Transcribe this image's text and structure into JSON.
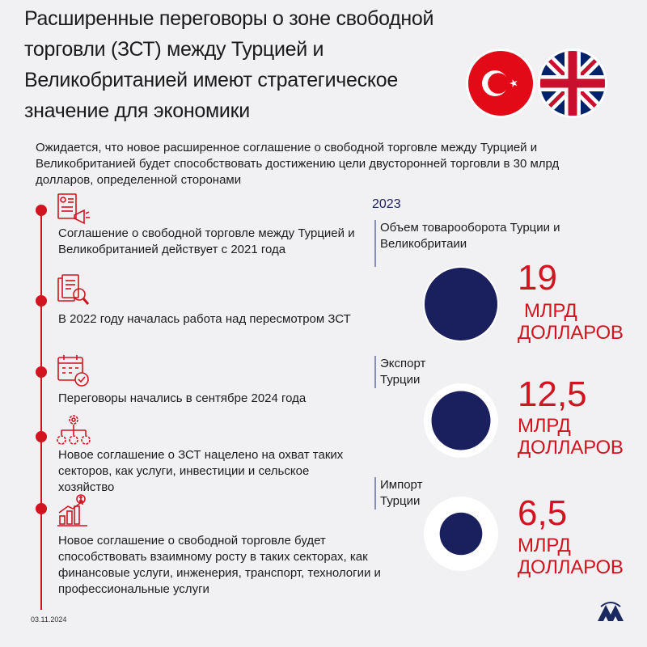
{
  "title": "Расширенные переговоры о зоне свободной торговли (ЗСТ) между Турцией и Великобританией имеют стратегическое значение для экономики",
  "intro": "Ожидается, что новое расширенное соглашение о свободной торговле между Турцией и Великобританией будет способствовать достижению цели двусторонней торговли в 30 млрд долларов, определенной сторонами",
  "timeline": [
    {
      "icon": "document-megaphone-icon",
      "text": "Соглашение о свободной торговле между Турцией и Великобританией действует с 2021 года"
    },
    {
      "icon": "document-search-icon",
      "text": "В 2022 году началась работа над пересмотром ЗСТ"
    },
    {
      "icon": "calendar-check-icon",
      "text": "Переговоры начались в сентябре 2024 года"
    },
    {
      "icon": "gear-network-icon",
      "text": "Новое соглашение о ЗСТ нацелено на охват таких секторов, как услуги, инвестиции и сельское хозяйство"
    },
    {
      "icon": "growth-chart-icon",
      "text": "Новое соглашение о свободной торговле будет способствовать взаимному росту в таких секторах, как финансовые услуги, инженерия, транспорт, технологии и профессиональные услуги"
    }
  ],
  "chart_data": {
    "type": "bubble",
    "title": "2023",
    "unit": "МЛРД ДОЛЛАРОВ",
    "items": [
      {
        "label": "Объем товарооборота Турции и Великобритаии",
        "value": 19,
        "display": "19",
        "unit_line1": "МЛРД",
        "unit_line2": "ДОЛЛАРОВ"
      },
      {
        "label": "Экспорт Турции",
        "value": 12.5,
        "display": "12,5",
        "unit_line1": "МЛРД",
        "unit_line2": "ДОЛЛАРОВ"
      },
      {
        "label": "Импорт Турции",
        "value": 6.5,
        "display": "6,5",
        "unit_line1": "МЛРД",
        "unit_line2": "ДОЛЛАРОВ"
      }
    ]
  },
  "flags": [
    "turkey-flag",
    "uk-flag"
  ],
  "colors": {
    "accent": "#d1141f",
    "navy": "#1a1f5e",
    "background": "#f1f1f3"
  },
  "footer": {
    "date": "03.11.2024",
    "logo_text": "AA"
  }
}
